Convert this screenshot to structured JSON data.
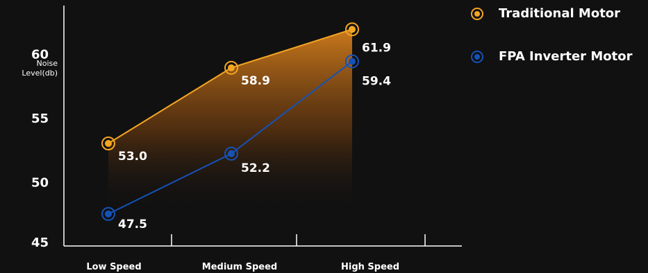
{
  "chart_data": {
    "type": "line",
    "categories": [
      "Low Speed",
      "Medium Speed",
      "High Speed"
    ],
    "series": [
      {
        "name": "Traditional Motor",
        "values": [
          53.0,
          58.9,
          61.9
        ],
        "color": "#f4a623",
        "labels": [
          "53.0",
          "58.9",
          "61.9"
        ]
      },
      {
        "name": "FPA Inverter Motor",
        "values": [
          47.5,
          52.2,
          59.4
        ],
        "color": "#1552b8",
        "labels": [
          "47.5",
          "52.2",
          "59.4"
        ]
      }
    ],
    "ylabel": "Noise Level(db)",
    "ylabel_lines": [
      "Noise",
      "Level(db)"
    ],
    "yticks": [
      "45",
      "50",
      "55",
      "60"
    ],
    "ylim": [
      45,
      62
    ],
    "legend_position": "top-right",
    "grid": false,
    "area_fill_color": "#d07a1a",
    "background": "#111111"
  }
}
